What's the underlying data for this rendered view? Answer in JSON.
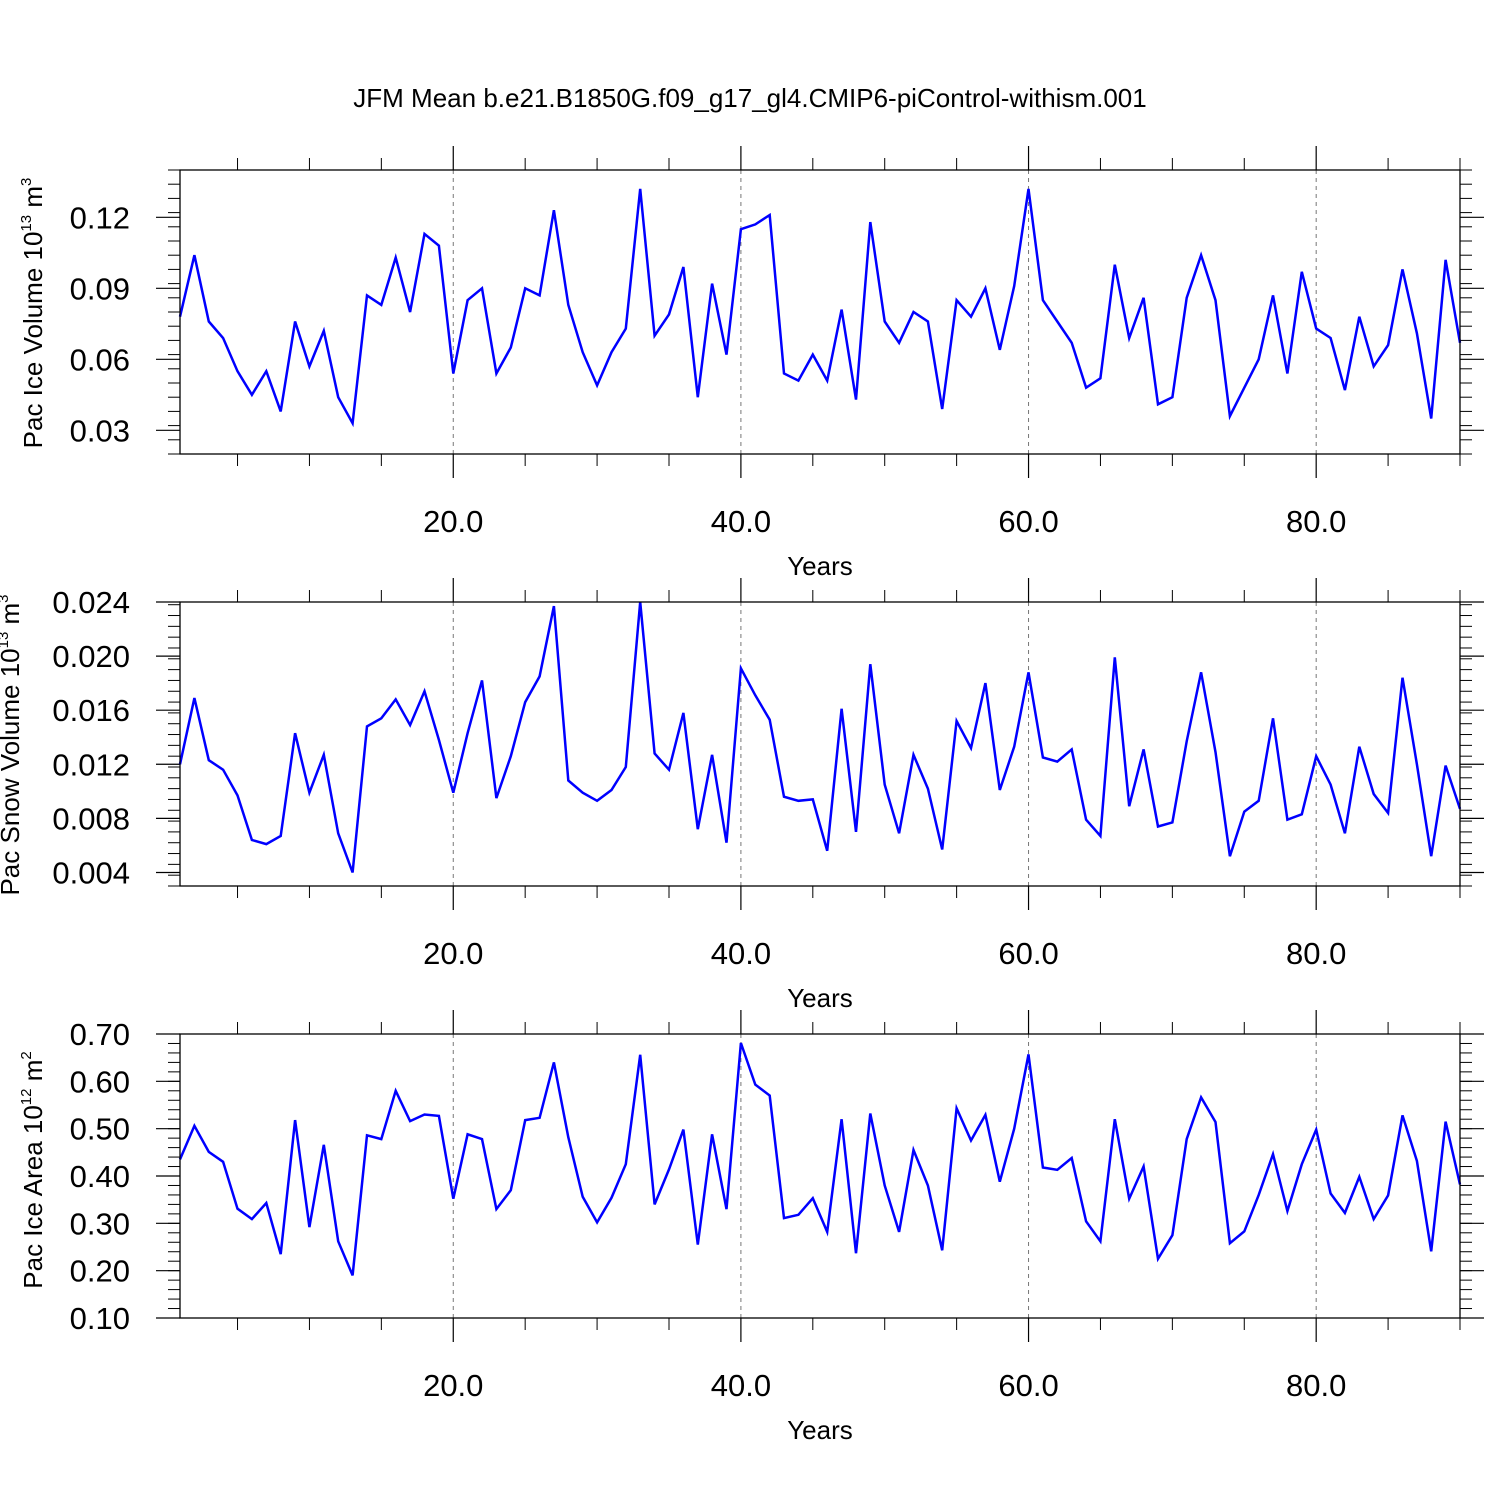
{
  "title": "JFM Mean b.e21.B1850G.f09_g17_gl4.CMIP6-piControl-withism.001",
  "line_color": "#0000ff",
  "chart_data": [
    {
      "type": "line",
      "ylabel_main": "Pac Ice Volume 10",
      "ylabel_exp": "13",
      "ylabel_unit": " m",
      "ylabel_unit_exp": "3",
      "xlabel": "Years",
      "xlim": [
        1,
        90
      ],
      "ylim": [
        0.02,
        0.14
      ],
      "xticks": [
        20,
        40,
        60,
        80
      ],
      "xtick_labels": [
        "20.0",
        "40.0",
        "60.0",
        "80.0"
      ],
      "yticks": [
        0.03,
        0.06,
        0.09,
        0.12
      ],
      "ytick_labels": [
        "0.03",
        "0.06",
        "0.09",
        "0.12"
      ],
      "x_start": 1,
      "values": [
        0.078,
        0.104,
        0.076,
        0.069,
        0.055,
        0.045,
        0.055,
        0.038,
        0.076,
        0.057,
        0.072,
        0.044,
        0.033,
        0.087,
        0.083,
        0.103,
        0.08,
        0.113,
        0.108,
        0.054,
        0.085,
        0.09,
        0.054,
        0.065,
        0.09,
        0.087,
        0.123,
        0.083,
        0.063,
        0.049,
        0.063,
        0.073,
        0.132,
        0.07,
        0.079,
        0.099,
        0.044,
        0.092,
        0.062,
        0.115,
        0.117,
        0.121,
        0.054,
        0.051,
        0.062,
        0.051,
        0.081,
        0.043,
        0.118,
        0.076,
        0.067,
        0.08,
        0.076,
        0.039,
        0.085,
        0.078,
        0.09,
        0.064,
        0.091,
        0.132,
        0.085,
        0.076,
        0.067,
        0.048,
        0.052,
        0.1,
        0.069,
        0.086,
        0.041,
        0.044,
        0.086,
        0.104,
        0.085,
        0.036,
        0.048,
        0.06,
        0.087,
        0.054,
        0.097,
        0.073,
        0.069,
        0.047,
        0.078,
        0.057,
        0.066,
        0.098,
        0.071,
        0.035,
        0.102,
        0.067
      ]
    },
    {
      "type": "line",
      "ylabel_main": "Pac Snow Volume 10",
      "ylabel_exp": "13",
      "ylabel_unit": " m",
      "ylabel_unit_exp": "3",
      "xlabel": "Years",
      "xlim": [
        1,
        90
      ],
      "ylim": [
        0.003,
        0.024
      ],
      "xticks": [
        20,
        40,
        60,
        80
      ],
      "xtick_labels": [
        "20.0",
        "40.0",
        "60.0",
        "80.0"
      ],
      "yticks": [
        0.004,
        0.008,
        0.012,
        0.016,
        0.02,
        0.024
      ],
      "ytick_labels": [
        "0.004",
        "0.008",
        "0.012",
        "0.016",
        "0.020",
        "0.024"
      ],
      "x_start": 1,
      "values": [
        0.012,
        0.0169,
        0.0123,
        0.0116,
        0.0097,
        0.0064,
        0.0061,
        0.0067,
        0.0143,
        0.0099,
        0.0127,
        0.0069,
        0.004,
        0.0148,
        0.0154,
        0.0168,
        0.0149,
        0.0174,
        0.0138,
        0.0099,
        0.0143,
        0.0182,
        0.0095,
        0.0126,
        0.0166,
        0.0185,
        0.0237,
        0.0108,
        0.0099,
        0.0093,
        0.0101,
        0.0118,
        0.024,
        0.0128,
        0.0116,
        0.0158,
        0.0072,
        0.0127,
        0.0062,
        0.0191,
        0.0171,
        0.0153,
        0.0096,
        0.0093,
        0.0094,
        0.0056,
        0.0161,
        0.007,
        0.0194,
        0.0105,
        0.0069,
        0.0127,
        0.0102,
        0.0057,
        0.0152,
        0.0132,
        0.018,
        0.0101,
        0.0133,
        0.0188,
        0.0125,
        0.0122,
        0.0131,
        0.0079,
        0.0067,
        0.0199,
        0.0089,
        0.0131,
        0.0074,
        0.0077,
        0.0137,
        0.0188,
        0.0129,
        0.0052,
        0.0085,
        0.0093,
        0.0154,
        0.0079,
        0.0083,
        0.0126,
        0.0105,
        0.0069,
        0.0133,
        0.0098,
        0.0084,
        0.0184,
        0.012,
        0.0052,
        0.0119,
        0.0087
      ]
    },
    {
      "type": "line",
      "ylabel_main": "Pac Ice Area 10",
      "ylabel_exp": "12",
      "ylabel_unit": " m",
      "ylabel_unit_exp": "2",
      "xlabel": "Years",
      "xlim": [
        1,
        90
      ],
      "ylim": [
        0.1,
        0.7
      ],
      "xticks": [
        20,
        40,
        60,
        80
      ],
      "xtick_labels": [
        "20.0",
        "40.0",
        "60.0",
        "80.0"
      ],
      "yticks": [
        0.1,
        0.2,
        0.3,
        0.4,
        0.5,
        0.6,
        0.7
      ],
      "ytick_labels": [
        "0.10",
        "0.20",
        "0.30",
        "0.40",
        "0.50",
        "0.60",
        "0.70"
      ],
      "x_start": 1,
      "values": [
        0.435,
        0.506,
        0.451,
        0.43,
        0.331,
        0.309,
        0.343,
        0.235,
        0.518,
        0.292,
        0.466,
        0.262,
        0.19,
        0.486,
        0.478,
        0.58,
        0.516,
        0.53,
        0.527,
        0.352,
        0.488,
        0.478,
        0.33,
        0.37,
        0.518,
        0.523,
        0.64,
        0.482,
        0.356,
        0.302,
        0.354,
        0.425,
        0.656,
        0.34,
        0.414,
        0.498,
        0.255,
        0.488,
        0.33,
        0.681,
        0.593,
        0.57,
        0.311,
        0.318,
        0.353,
        0.282,
        0.52,
        0.237,
        0.532,
        0.38,
        0.282,
        0.455,
        0.38,
        0.243,
        0.543,
        0.475,
        0.529,
        0.388,
        0.5,
        0.657,
        0.418,
        0.413,
        0.438,
        0.304,
        0.262,
        0.52,
        0.352,
        0.42,
        0.225,
        0.275,
        0.478,
        0.566,
        0.514,
        0.258,
        0.283,
        0.36,
        0.446,
        0.326,
        0.425,
        0.498,
        0.363,
        0.322,
        0.398,
        0.309,
        0.359,
        0.528,
        0.432,
        0.241,
        0.515,
        0.382
      ]
    }
  ]
}
